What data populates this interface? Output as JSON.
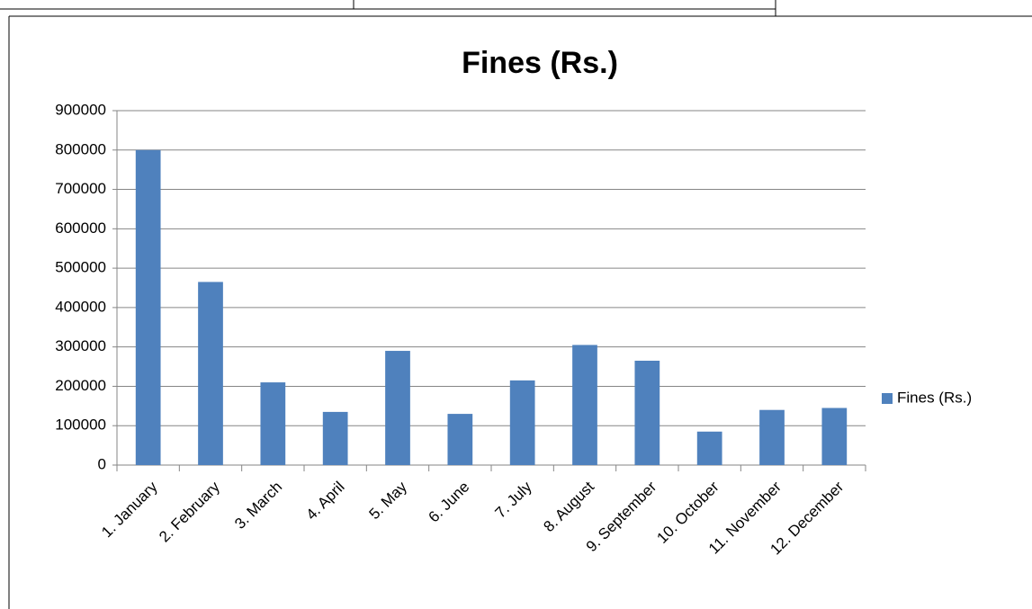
{
  "chart_data": {
    "type": "bar",
    "title": "Fines (Rs.)",
    "categories": [
      "1. January",
      "2. February",
      "3. March",
      "4. April",
      "5. May",
      "6. June",
      "7. July",
      "8. August",
      "9. September",
      "10. October",
      "11. November",
      "12. December"
    ],
    "series": [
      {
        "name": "Fines (Rs.)",
        "color": "#4f81bd",
        "values": [
          800000,
          465000,
          210000,
          135000,
          290000,
          130000,
          215000,
          305000,
          265000,
          85000,
          140000,
          145000
        ]
      }
    ],
    "ylim": [
      0,
      900000
    ],
    "yticks": [
      0,
      100000,
      200000,
      300000,
      400000,
      500000,
      600000,
      700000,
      800000,
      900000
    ],
    "grid": true,
    "legend": "right"
  }
}
